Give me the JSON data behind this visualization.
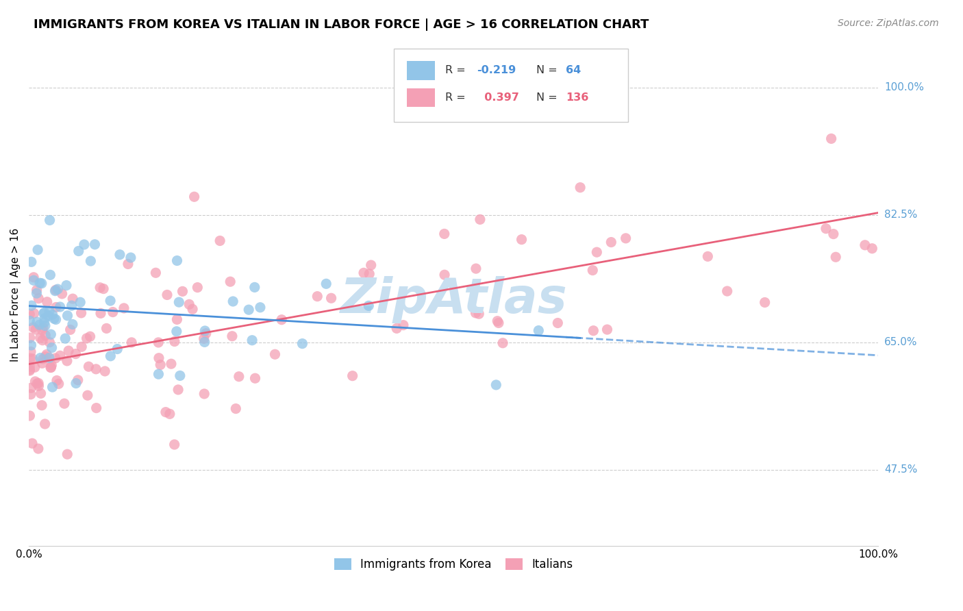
{
  "title": "IMMIGRANTS FROM KOREA VS ITALIAN IN LABOR FORCE | AGE > 16 CORRELATION CHART",
  "source": "Source: ZipAtlas.com",
  "ylabel": "In Labor Force | Age > 16",
  "y_ticks": [
    0.475,
    0.65,
    0.825,
    1.0
  ],
  "y_tick_labels": [
    "47.5%",
    "65.0%",
    "82.5%",
    "100.0%"
  ],
  "korea_R": -0.219,
  "korea_N": 64,
  "italian_R": 0.397,
  "italian_N": 136,
  "korea_color": "#92C5E8",
  "italian_color": "#F4A0B5",
  "korea_line_color": "#4A90D9",
  "italian_line_color": "#E8607A",
  "background_color": "#ffffff",
  "legend_box_color": "#ffffff",
  "legend_border_color": "#cccccc",
  "grid_color": "#cccccc",
  "right_label_color": "#5A9FD4",
  "watermark_color": "#C8DFF0",
  "title_color": "#000000",
  "source_color": "#888888"
}
